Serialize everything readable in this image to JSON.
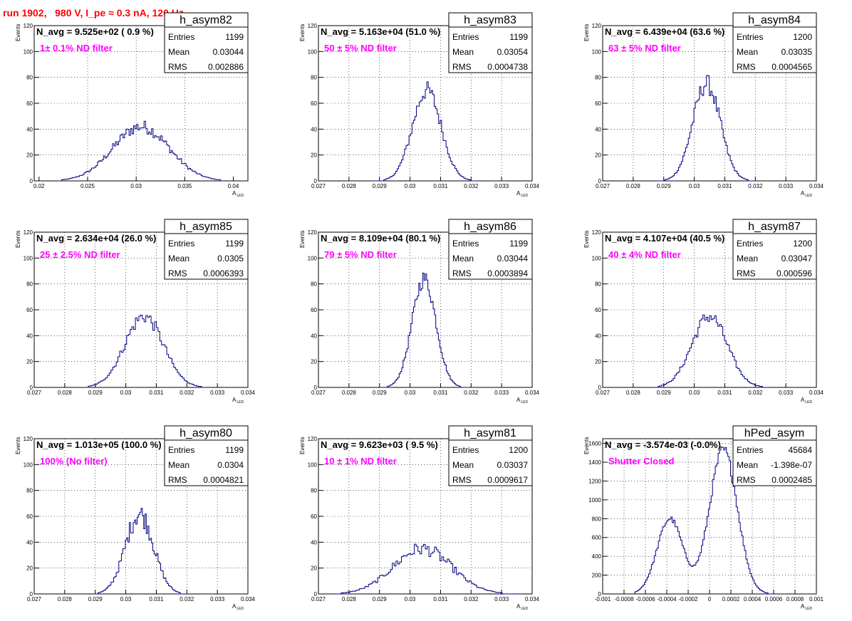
{
  "page_title": "run 1902,   980 V, I_pe ≈ 0.3 nA, 120 Hz",
  "colors": {
    "title": "#ff0000",
    "annotation": "#ff00ff",
    "hist_line": "#000080",
    "axis": "#000000"
  },
  "stats_labels": {
    "entries": "Entries",
    "mean": "Mean",
    "rms": "RMS"
  },
  "y_title": "Events",
  "x_title_main": "A",
  "x_title_sub": "LED",
  "chart_data": [
    {
      "type": "histogram",
      "name": "h_asym82",
      "navg": "N_avg = 9.525e+02 ( 0.9 %)",
      "annotation": "1± 0.1% ND filter",
      "stats": {
        "entries": "1199",
        "mean": "0.03044",
        "rms": "0.002886"
      },
      "xlim": [
        0.0195,
        0.0415
      ],
      "ylim": [
        0,
        120
      ],
      "xticks": [
        0.02,
        0.025,
        0.03,
        0.035,
        0.04
      ],
      "xtick_labels": [
        "0.02",
        "0.025",
        "0.03",
        "0.035",
        "0.04"
      ],
      "yticks": [
        0,
        20,
        40,
        60,
        80,
        100,
        120
      ],
      "ytick_labels": [
        "0",
        "20",
        "40",
        "60",
        "80",
        "100",
        "120"
      ],
      "dist": {
        "type": "gauss",
        "peaks": [
          {
            "mu": 0.0305,
            "sigma": 0.0029,
            "amp": 42
          }
        ],
        "range": [
          0.022,
          0.039
        ],
        "nbins": 110,
        "noise": 0.12
      }
    },
    {
      "type": "histogram",
      "name": "h_asym83",
      "navg": "N_avg = 5.163e+04 (51.0 %)",
      "annotation": "50 ± 5% ND filter",
      "stats": {
        "entries": "1199",
        "mean": "0.03054",
        "rms": "0.0004738"
      },
      "xlim": [
        0.027,
        0.034
      ],
      "ylim": [
        0,
        120
      ],
      "xticks": [
        0.027,
        0.028,
        0.029,
        0.03,
        0.031,
        0.032,
        0.033,
        0.034
      ],
      "xtick_labels": [
        "0.027",
        "0.028",
        "0.029",
        "0.03",
        "0.031",
        "0.032",
        "0.033",
        "0.034"
      ],
      "yticks": [
        0,
        20,
        40,
        60,
        80,
        100,
        120
      ],
      "ytick_labels": [
        "0",
        "20",
        "40",
        "60",
        "80",
        "100",
        "120"
      ],
      "dist": {
        "type": "gauss",
        "peaks": [
          {
            "mu": 0.03055,
            "sigma": 0.00047,
            "amp": 70
          }
        ],
        "range": [
          0.0288,
          0.0322
        ],
        "nbins": 70,
        "noise": 0.1
      }
    },
    {
      "type": "histogram",
      "name": "h_asym84",
      "navg": "N_avg = 6.439e+04 (63.6 %)",
      "annotation": "63 ± 5% ND filter",
      "stats": {
        "entries": "1200",
        "mean": "0.03035",
        "rms": "0.0004565"
      },
      "xlim": [
        0.027,
        0.034
      ],
      "ylim": [
        0,
        120
      ],
      "xticks": [
        0.027,
        0.028,
        0.029,
        0.03,
        0.031,
        0.032,
        0.033,
        0.034
      ],
      "xtick_labels": [
        "0.027",
        "0.028",
        "0.029",
        "0.03",
        "0.031",
        "0.032",
        "0.033",
        "0.034"
      ],
      "yticks": [
        0,
        20,
        40,
        60,
        80,
        100,
        120
      ],
      "ytick_labels": [
        "0",
        "20",
        "40",
        "60",
        "80",
        "100",
        "120"
      ],
      "dist": {
        "type": "gauss",
        "peaks": [
          {
            "mu": 0.0304,
            "sigma": 0.00045,
            "amp": 75
          }
        ],
        "range": [
          0.0288,
          0.032
        ],
        "nbins": 70,
        "noise": 0.1
      }
    },
    {
      "type": "histogram",
      "name": "h_asym85",
      "navg": "N_avg = 2.634e+04 (26.0 %)",
      "annotation": "25 ± 2.5% ND filter",
      "stats": {
        "entries": "1199",
        "mean": "0.0305",
        "rms": "0.0006393"
      },
      "xlim": [
        0.027,
        0.034
      ],
      "ylim": [
        0,
        120
      ],
      "xticks": [
        0.027,
        0.028,
        0.029,
        0.03,
        0.031,
        0.032,
        0.033,
        0.034
      ],
      "xtick_labels": [
        "0.027",
        "0.028",
        "0.029",
        "0.03",
        "0.031",
        "0.032",
        "0.033",
        "0.034"
      ],
      "yticks": [
        0,
        20,
        40,
        60,
        80,
        100,
        120
      ],
      "ytick_labels": [
        "0",
        "20",
        "40",
        "60",
        "80",
        "100",
        "120"
      ],
      "dist": {
        "type": "gauss",
        "peaks": [
          {
            "mu": 0.0306,
            "sigma": 0.00063,
            "amp": 55
          }
        ],
        "range": [
          0.0286,
          0.0326
        ],
        "nbins": 70,
        "noise": 0.1
      }
    },
    {
      "type": "histogram",
      "name": "h_asym86",
      "navg": "N_avg = 8.109e+04 (80.1 %)",
      "annotation": "79 ± 5% ND filter",
      "stats": {
        "entries": "1199",
        "mean": "0.03044",
        "rms": "0.0003894"
      },
      "xlim": [
        0.027,
        0.034
      ],
      "ylim": [
        0,
        120
      ],
      "xticks": [
        0.027,
        0.028,
        0.029,
        0.03,
        0.031,
        0.032,
        0.033,
        0.034
      ],
      "xtick_labels": [
        "0.027",
        "0.028",
        "0.029",
        "0.03",
        "0.031",
        "0.032",
        "0.033",
        "0.034"
      ],
      "yticks": [
        0,
        20,
        40,
        60,
        80,
        100,
        120
      ],
      "ytick_labels": [
        "0",
        "20",
        "40",
        "60",
        "80",
        "100",
        "120"
      ],
      "dist": {
        "type": "gauss",
        "peaks": [
          {
            "mu": 0.03046,
            "sigma": 0.00039,
            "amp": 84
          }
        ],
        "range": [
          0.029,
          0.032
        ],
        "nbins": 70,
        "noise": 0.08
      }
    },
    {
      "type": "histogram",
      "name": "h_asym87",
      "navg": "N_avg = 4.107e+04 (40.5 %)",
      "annotation": "40 ± 4% ND filter",
      "stats": {
        "entries": "1200",
        "mean": "0.03047",
        "rms": "0.000596"
      },
      "xlim": [
        0.027,
        0.034
      ],
      "ylim": [
        0,
        120
      ],
      "xticks": [
        0.027,
        0.028,
        0.029,
        0.03,
        0.031,
        0.032,
        0.033,
        0.034
      ],
      "xtick_labels": [
        "0.027",
        "0.028",
        "0.029",
        "0.03",
        "0.031",
        "0.032",
        "0.033",
        "0.034"
      ],
      "yticks": [
        0,
        20,
        40,
        60,
        80,
        100,
        120
      ],
      "ytick_labels": [
        "0",
        "20",
        "40",
        "60",
        "80",
        "100",
        "120"
      ],
      "dist": {
        "type": "gauss",
        "peaks": [
          {
            "mu": 0.0305,
            "sigma": 0.00058,
            "amp": 55
          }
        ],
        "range": [
          0.0286,
          0.0324
        ],
        "nbins": 70,
        "noise": 0.1
      }
    },
    {
      "type": "histogram",
      "name": "h_asym80",
      "navg": "N_avg = 1.013e+05 (100.0 %)",
      "annotation": "100% (No filter)",
      "stats": {
        "entries": "1199",
        "mean": "0.0304",
        "rms": "0.0004821"
      },
      "xlim": [
        0.027,
        0.034
      ],
      "ylim": [
        0,
        120
      ],
      "xticks": [
        0.027,
        0.028,
        0.029,
        0.03,
        0.031,
        0.032,
        0.033,
        0.034
      ],
      "xtick_labels": [
        "0.027",
        "0.028",
        "0.029",
        "0.03",
        "0.031",
        "0.032",
        "0.033",
        "0.034"
      ],
      "yticks": [
        0,
        20,
        40,
        60,
        80,
        100,
        120
      ],
      "ytick_labels": [
        "0",
        "20",
        "40",
        "60",
        "80",
        "100",
        "120"
      ],
      "dist": {
        "type": "gauss",
        "peaks": [
          {
            "mu": 0.03045,
            "sigma": 0.00046,
            "amp": 62
          }
        ],
        "range": [
          0.029,
          0.032
        ],
        "nbins": 70,
        "noise": 0.14
      }
    },
    {
      "type": "histogram",
      "name": "h_asym81",
      "navg": "N_avg = 9.623e+03 ( 9.5 %)",
      "annotation": "10 ± 1% ND filter",
      "stats": {
        "entries": "1200",
        "mean": "0.03037",
        "rms": "0.0009617"
      },
      "xlim": [
        0.027,
        0.034
      ],
      "ylim": [
        0,
        120
      ],
      "xticks": [
        0.027,
        0.028,
        0.029,
        0.03,
        0.031,
        0.032,
        0.033,
        0.034
      ],
      "xtick_labels": [
        "0.027",
        "0.028",
        "0.029",
        "0.03",
        "0.031",
        "0.032",
        "0.033",
        "0.034"
      ],
      "yticks": [
        0,
        20,
        40,
        60,
        80,
        100,
        120
      ],
      "ytick_labels": [
        "0",
        "20",
        "40",
        "60",
        "80",
        "100",
        "120"
      ],
      "dist": {
        "type": "gauss",
        "peaks": [
          {
            "mu": 0.0304,
            "sigma": 0.00095,
            "amp": 35
          }
        ],
        "range": [
          0.0275,
          0.0335
        ],
        "nbins": 100,
        "noise": 0.15
      }
    },
    {
      "type": "histogram",
      "name": "hPed_asym",
      "navg": "N_avg = -3.574e-03 (-0.0%)",
      "annotation": "Shutter Closed",
      "stats": {
        "entries": "45684",
        "mean": "-1.398e-07",
        "rms": "0.0002485"
      },
      "xlim": [
        -0.001,
        0.001
      ],
      "ylim": [
        0,
        1650
      ],
      "xticks": [
        -0.001,
        -0.0008,
        -0.0006,
        -0.0004,
        -0.0002,
        0,
        0.0002,
        0.0004,
        0.0006,
        0.0008,
        0.001
      ],
      "xtick_labels": [
        "-0.001",
        "-0.0008",
        "-0.0006",
        "-0.0004",
        "-0.0002",
        "0",
        "0.0002",
        "0.0004",
        "0.0006",
        "0.0008",
        "0.001"
      ],
      "yticks": [
        0,
        200,
        400,
        600,
        800,
        1000,
        1200,
        1400,
        1600
      ],
      "ytick_labels": [
        "0",
        "200",
        "400",
        "600",
        "800",
        "1000",
        "1200",
        "1400",
        "1600"
      ],
      "dist": {
        "type": "gauss",
        "peaks": [
          {
            "mu": -0.00037,
            "sigma": 0.00012,
            "amp": 800
          },
          {
            "mu": 0.00013,
            "sigma": 0.00013,
            "amp": 1530
          }
        ],
        "range": [
          -0.0007,
          0.0006
        ],
        "nbins": 100,
        "noise": 0.04
      }
    }
  ]
}
